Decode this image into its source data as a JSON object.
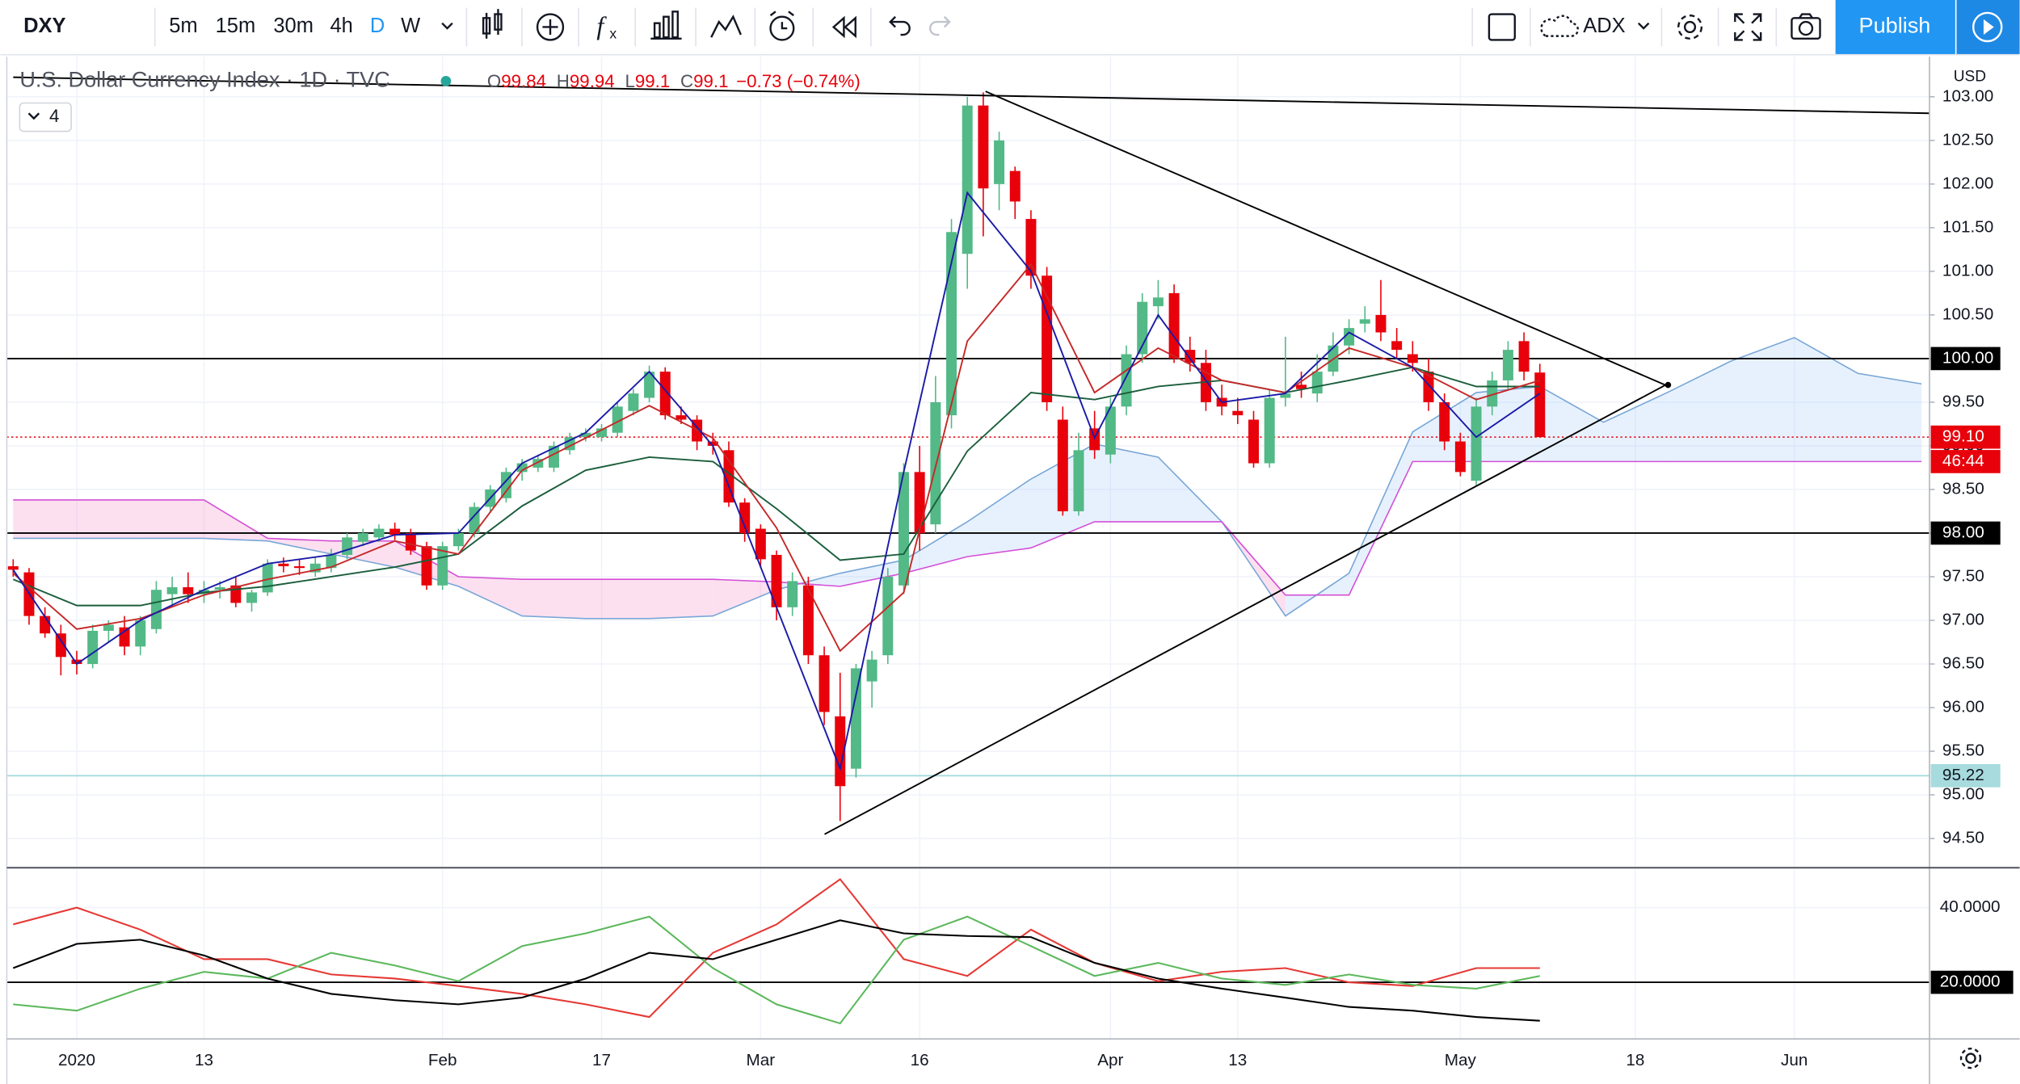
{
  "toolbar": {
    "symbol": "DXY",
    "intervals": [
      "5m",
      "15m",
      "30m",
      "4h",
      "D",
      "W"
    ],
    "indicator": "ADX",
    "publish": "Publish"
  },
  "legend": {
    "title": "U.S. Dollar Currency Index · 1D · TVC",
    "ohlc_labels": [
      "O",
      "H",
      "L",
      "C"
    ],
    "change": "−0.73 (−0.74%)",
    "indicator_count": "4"
  },
  "chart_data": [
    {
      "type": "candlestick",
      "currency": "USD",
      "up_color": "#53b987",
      "down_color": "#e8000b",
      "grid": true,
      "xlim": [
        -0.4,
        120.5
      ],
      "ylim": [
        94.18,
        103.46
      ],
      "xticks": [
        {
          "value": 4,
          "label": "2020"
        },
        {
          "value": 12,
          "label": "13"
        },
        {
          "value": 27,
          "label": "Feb"
        },
        {
          "value": 37,
          "label": "17"
        },
        {
          "value": 47,
          "label": "Mar"
        },
        {
          "value": 57,
          "label": "16"
        },
        {
          "value": 69,
          "label": "Apr"
        },
        {
          "value": 77,
          "label": "13"
        },
        {
          "value": 91,
          "label": "May"
        },
        {
          "value": 102,
          "label": "18"
        },
        {
          "value": 112,
          "label": "Jun"
        }
      ],
      "yticks": [
        {
          "value": 94.5,
          "label": "94.50"
        },
        {
          "value": 95,
          "label": "95.00"
        },
        {
          "value": 95.5,
          "label": "95.50"
        },
        {
          "value": 96,
          "label": "96.00"
        },
        {
          "value": 96.5,
          "label": "96.50"
        },
        {
          "value": 97,
          "label": "97.00"
        },
        {
          "value": 97.5,
          "label": "97.50"
        },
        {
          "value": 98,
          "label": "98.00"
        },
        {
          "value": 98.5,
          "label": "98.50"
        },
        {
          "value": 99,
          "label": "99.00"
        },
        {
          "value": 99.5,
          "label": "99.50"
        },
        {
          "value": 100,
          "label": "100.00"
        },
        {
          "value": 100.5,
          "label": "100.50"
        },
        {
          "value": 101,
          "label": "101.00"
        },
        {
          "value": 101.5,
          "label": "101.50"
        },
        {
          "value": 102,
          "label": "102.00"
        },
        {
          "value": 102.5,
          "label": "102.50"
        },
        {
          "value": 103,
          "label": "103.00"
        }
      ],
      "candles": [
        [
          97.62,
          97.7,
          97.5,
          97.58
        ],
        [
          97.55,
          97.6,
          96.95,
          97.05
        ],
        [
          97.05,
          97.15,
          96.8,
          96.85
        ],
        [
          96.85,
          96.95,
          96.37,
          96.58
        ],
        [
          96.55,
          96.65,
          96.38,
          96.5
        ],
        [
          96.5,
          96.95,
          96.45,
          96.88
        ],
        [
          96.88,
          97.0,
          96.75,
          96.95
        ],
        [
          96.92,
          97.05,
          96.6,
          96.7
        ],
        [
          96.7,
          97.05,
          96.6,
          97.0
        ],
        [
          96.9,
          97.45,
          96.85,
          97.35
        ],
        [
          97.3,
          97.5,
          97.15,
          97.38
        ],
        [
          97.38,
          97.55,
          97.2,
          97.3
        ],
        [
          97.3,
          97.45,
          97.2,
          97.35
        ],
        [
          97.35,
          97.45,
          97.25,
          97.38
        ],
        [
          97.4,
          97.5,
          97.15,
          97.2
        ],
        [
          97.2,
          97.35,
          97.1,
          97.32
        ],
        [
          97.32,
          97.7,
          97.28,
          97.65
        ],
        [
          97.65,
          97.72,
          97.55,
          97.62
        ],
        [
          97.62,
          97.7,
          97.52,
          97.6
        ],
        [
          97.55,
          97.72,
          97.5,
          97.65
        ],
        [
          97.6,
          97.82,
          97.55,
          97.75
        ],
        [
          97.75,
          98.0,
          97.7,
          97.95
        ],
        [
          97.9,
          98.05,
          97.85,
          98.0
        ],
        [
          97.95,
          98.1,
          97.9,
          98.05
        ],
        [
          98.05,
          98.12,
          97.92,
          97.98
        ],
        [
          98.0,
          98.05,
          97.75,
          97.8
        ],
        [
          97.85,
          97.9,
          97.35,
          97.4
        ],
        [
          97.4,
          97.9,
          97.35,
          97.85
        ],
        [
          97.85,
          98.05,
          97.8,
          98.0
        ],
        [
          98.0,
          98.35,
          97.95,
          98.3
        ],
        [
          98.3,
          98.55,
          98.25,
          98.5
        ],
        [
          98.4,
          98.75,
          98.35,
          98.7
        ],
        [
          98.7,
          98.85,
          98.6,
          98.8
        ],
        [
          98.75,
          98.9,
          98.7,
          98.85
        ],
        [
          98.75,
          99.05,
          98.7,
          99.0
        ],
        [
          98.95,
          99.15,
          98.9,
          99.1
        ],
        [
          99.1,
          99.2,
          99.05,
          99.15
        ],
        [
          99.1,
          99.25,
          99.05,
          99.2
        ],
        [
          99.15,
          99.5,
          99.1,
          99.45
        ],
        [
          99.4,
          99.65,
          99.35,
          99.6
        ],
        [
          99.55,
          99.92,
          99.5,
          99.85
        ],
        [
          99.85,
          99.9,
          99.3,
          99.35
        ],
        [
          99.35,
          99.45,
          99.25,
          99.3
        ],
        [
          99.3,
          99.35,
          98.95,
          99.05
        ],
        [
          99.05,
          99.15,
          98.9,
          99.0
        ],
        [
          98.95,
          99.05,
          98.3,
          98.35
        ],
        [
          98.35,
          98.4,
          97.9,
          98.0
        ],
        [
          98.05,
          98.1,
          97.6,
          97.7
        ],
        [
          97.75,
          97.8,
          97.0,
          97.15
        ],
        [
          97.15,
          97.55,
          97.05,
          97.45
        ],
        [
          97.4,
          97.5,
          96.5,
          96.6
        ],
        [
          96.6,
          96.7,
          95.8,
          95.95
        ],
        [
          95.9,
          96.4,
          94.7,
          95.1
        ],
        [
          95.3,
          96.5,
          95.2,
          96.45
        ],
        [
          96.3,
          96.65,
          96.0,
          96.55
        ],
        [
          96.6,
          97.6,
          96.5,
          97.5
        ],
        [
          97.4,
          98.8,
          97.3,
          98.7
        ],
        [
          98.7,
          99.0,
          97.8,
          98.0
        ],
        [
          98.1,
          99.8,
          98.0,
          99.5
        ],
        [
          99.35,
          101.6,
          99.2,
          101.45
        ],
        [
          101.2,
          103.0,
          100.8,
          102.9
        ],
        [
          102.9,
          103.05,
          101.4,
          101.95
        ],
        [
          102.0,
          102.6,
          101.7,
          102.5
        ],
        [
          102.15,
          102.2,
          101.6,
          101.8
        ],
        [
          101.6,
          101.7,
          100.8,
          100.95
        ],
        [
          100.95,
          101.05,
          99.4,
          99.5
        ],
        [
          99.3,
          99.45,
          98.2,
          98.25
        ],
        [
          98.25,
          99.15,
          98.2,
          98.95
        ],
        [
          99.2,
          99.4,
          98.85,
          98.95
        ],
        [
          98.9,
          99.55,
          98.8,
          99.45
        ],
        [
          99.45,
          100.15,
          99.35,
          100.05
        ],
        [
          100.05,
          100.75,
          99.95,
          100.65
        ],
        [
          100.6,
          100.9,
          100.45,
          100.7
        ],
        [
          100.75,
          100.85,
          99.95,
          100.0
        ],
        [
          100.1,
          100.25,
          99.85,
          99.95
        ],
        [
          99.95,
          100.1,
          99.4,
          99.5
        ],
        [
          99.55,
          99.7,
          99.35,
          99.45
        ],
        [
          99.4,
          99.55,
          99.25,
          99.35
        ],
        [
          99.3,
          99.4,
          98.75,
          98.8
        ],
        [
          98.8,
          99.65,
          98.75,
          99.55
        ],
        [
          99.55,
          100.25,
          99.45,
          99.6
        ],
        [
          99.7,
          99.85,
          99.55,
          99.65
        ],
        [
          99.6,
          100.05,
          99.5,
          99.85
        ],
        [
          99.85,
          100.3,
          99.8,
          100.15
        ],
        [
          100.15,
          100.45,
          100.05,
          100.35
        ],
        [
          100.4,
          100.6,
          100.3,
          100.45
        ],
        [
          100.5,
          100.9,
          100.2,
          100.3
        ],
        [
          100.2,
          100.35,
          100.0,
          100.1
        ],
        [
          100.05,
          100.2,
          99.85,
          99.95
        ],
        [
          99.85,
          100.0,
          99.4,
          99.5
        ],
        [
          99.5,
          99.6,
          98.95,
          99.05
        ],
        [
          99.05,
          99.15,
          98.65,
          98.7
        ],
        [
          98.6,
          99.55,
          98.55,
          99.45
        ],
        [
          99.45,
          99.85,
          99.35,
          99.75
        ],
        [
          99.75,
          100.2,
          99.65,
          100.1
        ],
        [
          100.2,
          100.3,
          99.75,
          99.85
        ],
        [
          99.84,
          99.94,
          99.1,
          99.1
        ]
      ],
      "overlays": {
        "x": [
          0,
          4,
          8,
          12,
          16,
          20,
          24,
          28,
          32,
          36,
          40,
          44,
          48,
          52,
          56,
          60,
          64,
          68,
          72,
          76,
          80,
          84,
          88,
          92,
          96
        ],
        "series": [
          {
            "color": "#1b5e3c",
            "values": [
              97.47,
              97.17,
              97.17,
              97.32,
              97.39,
              97.5,
              97.61,
              97.76,
              98.31,
              98.72,
              98.87,
              98.82,
              98.28,
              97.69,
              97.76,
              98.94,
              99.61,
              99.53,
              99.68,
              99.75,
              99.61,
              99.75,
              99.9,
              99.68,
              99.68
            ]
          },
          {
            "color": "#c62828",
            "values": [
              97.54,
              96.9,
              97.02,
              97.29,
              97.47,
              97.61,
              97.91,
              97.76,
              98.72,
              99.09,
              99.46,
              99.09,
              98.06,
              96.65,
              97.32,
              100.2,
              101.08,
              99.61,
              100.12,
              99.75,
              99.61,
              100.12,
              99.9,
              99.53,
              99.75
            ]
          },
          {
            "color": "#1a1aa8",
            "values": [
              97.58,
              96.5,
              97.0,
              97.35,
              97.65,
              97.75,
              97.98,
              98.0,
              98.8,
              99.15,
              99.85,
              99.0,
              97.15,
              95.3,
              98.7,
              101.9,
              101.0,
              99.09,
              100.5,
              99.5,
              99.6,
              100.3,
              99.9,
              99.1,
              99.6
            ]
          }
        ]
      },
      "cloud": {
        "x": [
          0,
          4,
          8,
          12,
          16,
          20,
          24,
          28,
          32,
          36,
          40,
          44,
          48,
          52,
          56,
          60,
          64,
          68,
          72,
          76,
          80,
          84,
          88,
          92,
          96,
          100,
          104,
          108,
          112,
          116,
          120
        ],
        "span_a": [
          97.94,
          97.94,
          97.94,
          97.94,
          97.91,
          97.76,
          97.61,
          97.39,
          97.05,
          97.02,
          97.02,
          97.05,
          97.35,
          97.54,
          97.69,
          98.13,
          98.62,
          99.02,
          98.87,
          98.13,
          97.05,
          97.54,
          99.16,
          99.61,
          99.68,
          99.27,
          99.61,
          99.97,
          100.24,
          99.83,
          99.71
        ],
        "span_b": [
          98.38,
          98.38,
          98.38,
          98.38,
          97.94,
          97.91,
          97.91,
          97.5,
          97.47,
          97.47,
          97.47,
          97.47,
          97.44,
          97.39,
          97.54,
          97.73,
          97.83,
          98.13,
          98.13,
          98.13,
          97.29,
          97.29,
          98.82,
          98.82,
          98.82,
          98.82,
          98.82,
          98.82,
          98.82,
          98.82,
          98.82
        ],
        "span_a_color": "#78a6d6",
        "span_b_color": "#d44fd6",
        "up_fill": "rgba(144,191,249,0.22)",
        "down_fill": "rgba(244,143,200,0.28)"
      },
      "price_lines": [
        {
          "value": 100,
          "label": "100.00",
          "color": "#000000",
          "text_color": "#ffffff",
          "style": "solid"
        },
        {
          "value": 99.1,
          "label": "99.10",
          "color": "#e8000b",
          "text_color": "#ffffff",
          "style": "dotted"
        },
        {
          "value": 98,
          "label": "98.00",
          "color": "#000000",
          "text_color": "#ffffff",
          "style": "solid"
        },
        {
          "value": 95.22,
          "label": "95.22",
          "color": "#a7dbdd",
          "text_color": "#131722",
          "style": "solid"
        }
      ],
      "countdown": "46:44"
    },
    {
      "type": "line",
      "ylim": [
        4.83,
        50.34
      ],
      "yticks": [
        {
          "value": 20,
          "label": "20.0000"
        },
        {
          "value": 40,
          "label": "40.0000"
        }
      ],
      "marked_level": 20,
      "x": [
        0,
        4,
        8,
        12,
        16,
        20,
        24,
        28,
        32,
        36,
        40,
        44,
        48,
        52,
        56,
        60,
        64,
        68,
        72,
        76,
        80,
        84,
        88,
        92,
        96
      ],
      "series": [
        {
          "color": "#e53935",
          "values": [
            35.5,
            40.0,
            34.1,
            26.2,
            26.2,
            22.1,
            21.0,
            19.0,
            16.9,
            14.1,
            10.7,
            27.9,
            35.5,
            47.6,
            26.2,
            21.7,
            34.1,
            25.2,
            20.3,
            22.8,
            23.8,
            20.0,
            19.0,
            23.8,
            23.8
          ]
        },
        {
          "color": "#5cb85c",
          "values": [
            14.1,
            12.4,
            18.3,
            22.8,
            21.0,
            27.9,
            24.5,
            20.3,
            29.7,
            33.1,
            37.6,
            23.8,
            14.1,
            9.0,
            31.4,
            37.6,
            29.7,
            21.7,
            25.2,
            21.0,
            19.3,
            22.1,
            19.3,
            18.3,
            21.7
          ]
        },
        {
          "color": "#000000",
          "values": [
            23.8,
            30.3,
            31.4,
            27.2,
            21.0,
            16.9,
            15.2,
            14.1,
            15.9,
            21.0,
            27.9,
            26.2,
            31.4,
            36.6,
            33.1,
            32.4,
            32.1,
            25.2,
            21.0,
            18.3,
            15.9,
            13.4,
            12.4,
            10.7,
            9.7
          ]
        }
      ]
    }
  ]
}
